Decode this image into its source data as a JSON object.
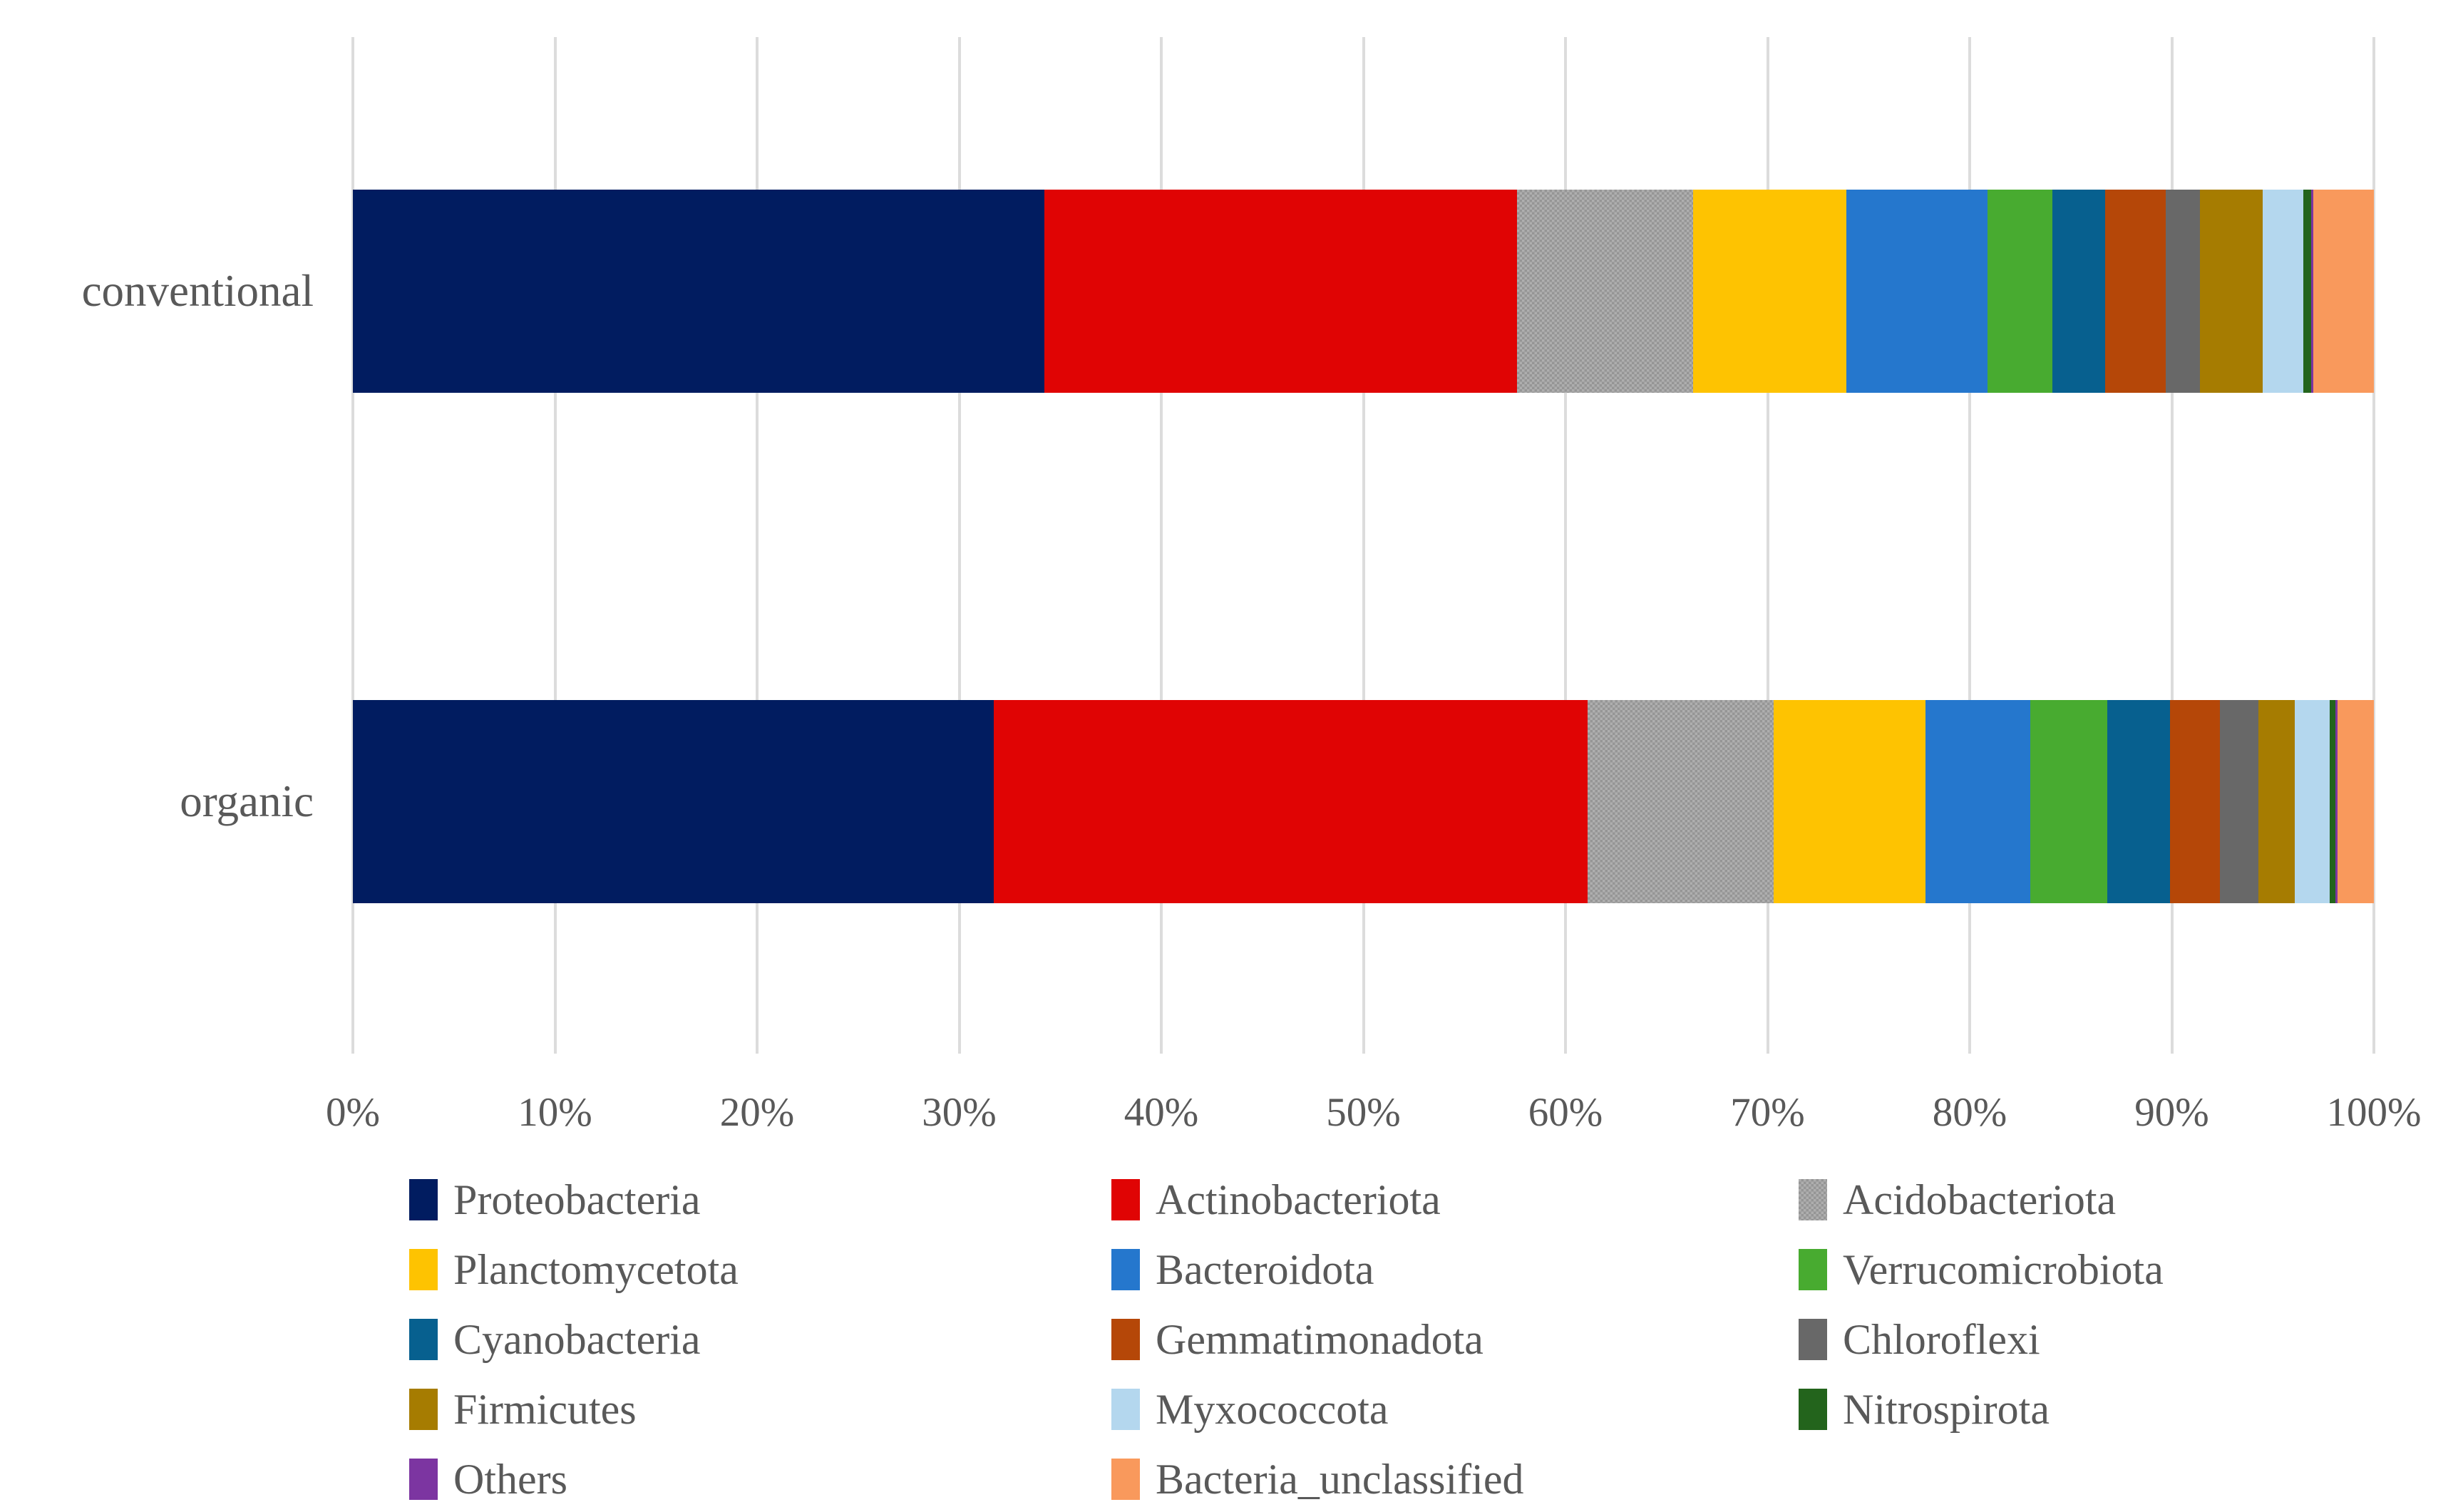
{
  "chart_data": {
    "type": "bar",
    "orientation": "horizontal",
    "stacked": true,
    "title": "",
    "xlabel": "",
    "ylabel": "",
    "xlim": [
      0,
      100
    ],
    "grid": true,
    "legend_position": "bottom",
    "legend_columns": 3,
    "categories": [
      "conventional",
      "organic"
    ],
    "x_tick_labels": [
      "0%",
      "10%",
      "20%",
      "30%",
      "40%",
      "50%",
      "60%",
      "70%",
      "80%",
      "90%",
      "100%"
    ],
    "series": [
      {
        "name": "Proteobacteria",
        "color": "#011c60",
        "pattern": "solid",
        "values": [
          34.2,
          31.7
        ]
      },
      {
        "name": "Actinobacteriota",
        "color": "#e00404",
        "pattern": "solid",
        "values": [
          23.4,
          29.4
        ]
      },
      {
        "name": "Acidobacteriota",
        "color": "#aeaeae",
        "pattern": "checker",
        "values": [
          8.7,
          9.2
        ]
      },
      {
        "name": "Planctomycetota",
        "color": "#fec301",
        "pattern": "solid",
        "values": [
          7.6,
          7.5
        ]
      },
      {
        "name": "Bacteroidota",
        "color": "#2577cd",
        "pattern": "solid",
        "values": [
          7.0,
          5.2
        ]
      },
      {
        "name": "Verrucomicrobiota",
        "color": "#48ab30",
        "pattern": "solid",
        "values": [
          3.2,
          3.8
        ]
      },
      {
        "name": "Cyanobacteria",
        "color": "#07608f",
        "pattern": "solid",
        "values": [
          2.6,
          3.1
        ]
      },
      {
        "name": "Gemmatimonadota",
        "color": "#b54708",
        "pattern": "solid",
        "values": [
          3.0,
          2.5
        ]
      },
      {
        "name": "Chloroflexi",
        "color": "#686868",
        "pattern": "solid",
        "values": [
          1.7,
          1.9
        ]
      },
      {
        "name": "Firmicutes",
        "color": "#a67c01",
        "pattern": "solid",
        "values": [
          3.1,
          1.8
        ]
      },
      {
        "name": "Myxococcota",
        "color": "#b4d7ee",
        "pattern": "solid",
        "values": [
          2.0,
          1.7
        ]
      },
      {
        "name": "Nitrospirota",
        "color": "#23641c",
        "pattern": "solid",
        "values": [
          0.4,
          0.3
        ]
      },
      {
        "name": "Others",
        "color": "#7c35a1",
        "pattern": "solid",
        "values": [
          0.1,
          0.1
        ]
      },
      {
        "name": "Bacteria_unclassified",
        "color": "#f9995c",
        "pattern": "solid",
        "values": [
          3.0,
          1.8
        ]
      }
    ]
  },
  "styles": {
    "grid_color": "#dcdcdc",
    "text_color": "#595959",
    "background": "#ffffff"
  }
}
